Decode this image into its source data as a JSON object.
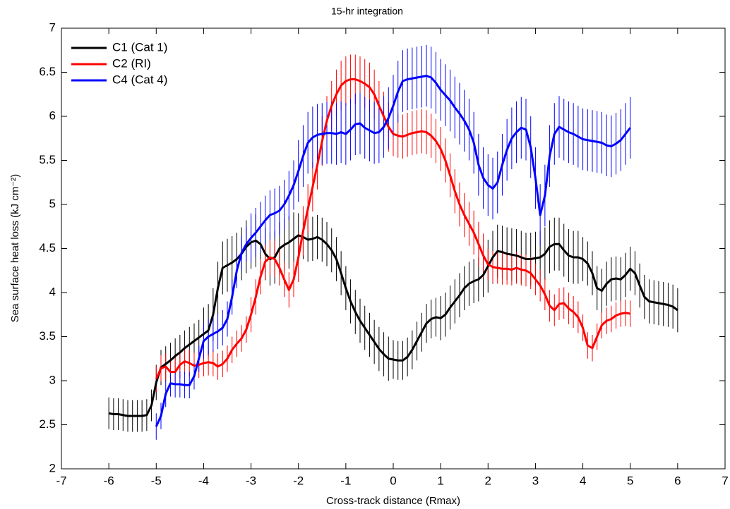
{
  "chart_data": {
    "type": "line",
    "title": "15-hr integration",
    "x_label": "Cross-track distance (Rmax)",
    "y_label": "Sea surface heat loss (kJ cm⁻²)",
    "xlim": [
      -7,
      7
    ],
    "xticks": [
      -7,
      -6,
      -5,
      -4,
      -3,
      -2,
      -1,
      0,
      1,
      2,
      3,
      4,
      5,
      6,
      7
    ],
    "ylim": [
      2,
      7
    ],
    "yticks": [
      2,
      2.5,
      3,
      3.5,
      4,
      4.5,
      5,
      5.5,
      6,
      6.5,
      7
    ],
    "grid": false,
    "legend": "upper left",
    "series": [
      {
        "name": "C1 (Cat 1)",
        "color": "#000000",
        "x": [
          -6,
          -5.9,
          -5.8,
          -5.7,
          -5.6,
          -5.5,
          -5.4,
          -5.3,
          -5.2,
          -5.1,
          -5,
          -4.9,
          -4.8,
          -4.7,
          -4.6,
          -4.5,
          -4.4,
          -4.3,
          -4.2,
          -4.1,
          -4,
          -3.9,
          -3.8,
          -3.7,
          -3.6,
          -3.5,
          -3.4,
          -3.3,
          -3.2,
          -3.1,
          -3,
          -2.9,
          -2.8,
          -2.7,
          -2.6,
          -2.5,
          -2.4,
          -2.3,
          -2.2,
          -2.1,
          -2,
          -1.9,
          -1.8,
          -1.7,
          -1.6,
          -1.5,
          -1.4,
          -1.3,
          -1.2,
          -1.1,
          -1,
          -0.9,
          -0.8,
          -0.7,
          -0.6,
          -0.5,
          -0.4,
          -0.3,
          -0.2,
          -0.1,
          0,
          0.1,
          0.2,
          0.3,
          0.4,
          0.5,
          0.6,
          0.7,
          0.8,
          0.9,
          1,
          1.1,
          1.2,
          1.3,
          1.4,
          1.5,
          1.6,
          1.7,
          1.8,
          1.9,
          2,
          2.1,
          2.2,
          2.3,
          2.4,
          2.5,
          2.6,
          2.7,
          2.8,
          2.9,
          3,
          3.1,
          3.2,
          3.3,
          3.4,
          3.5,
          3.6,
          3.7,
          3.8,
          3.9,
          4,
          4.1,
          4.2,
          4.3,
          4.4,
          4.5,
          4.6,
          4.7,
          4.8,
          4.9,
          5,
          5.1,
          5.2,
          5.3,
          5.4,
          5.5,
          5.6,
          5.7,
          5.8,
          5.9,
          6
        ],
        "values": [
          2.63,
          2.62,
          2.62,
          2.61,
          2.6,
          2.6,
          2.6,
          2.6,
          2.61,
          2.72,
          2.98,
          3.15,
          3.19,
          3.23,
          3.28,
          3.32,
          3.37,
          3.41,
          3.45,
          3.49,
          3.53,
          3.57,
          3.75,
          4.05,
          4.28,
          4.31,
          4.34,
          4.38,
          4.44,
          4.52,
          4.57,
          4.59,
          4.55,
          4.44,
          4.38,
          4.4,
          4.5,
          4.54,
          4.57,
          4.61,
          4.65,
          4.63,
          4.6,
          4.61,
          4.63,
          4.6,
          4.55,
          4.48,
          4.38,
          4.22,
          4.05,
          3.9,
          3.78,
          3.68,
          3.6,
          3.52,
          3.44,
          3.36,
          3.3,
          3.25,
          3.24,
          3.23,
          3.23,
          3.27,
          3.35,
          3.45,
          3.55,
          3.65,
          3.7,
          3.72,
          3.71,
          3.75,
          3.83,
          3.9,
          3.97,
          4.05,
          4.1,
          4.13,
          4.15,
          4.2,
          4.3,
          4.4,
          4.47,
          4.46,
          4.44,
          4.43,
          4.42,
          4.4,
          4.38,
          4.38,
          4.39,
          4.4,
          4.44,
          4.52,
          4.55,
          4.55,
          4.48,
          4.42,
          4.4,
          4.4,
          4.38,
          4.33,
          4.22,
          4.05,
          4.02,
          4.1,
          4.15,
          4.16,
          4.15,
          4.2,
          4.27,
          4.22,
          4.08,
          3.95,
          3.9,
          3.89,
          3.88,
          3.87,
          3.86,
          3.84,
          3.8
        ],
        "errors": [
          0.18,
          0.18,
          0.18,
          0.18,
          0.18,
          0.18,
          0.18,
          0.18,
          0.18,
          0.18,
          0.2,
          0.2,
          0.2,
          0.2,
          0.2,
          0.2,
          0.2,
          0.2,
          0.2,
          0.2,
          0.3,
          0.3,
          0.3,
          0.3,
          0.3,
          0.3,
          0.3,
          0.3,
          0.3,
          0.3,
          0.3,
          0.3,
          0.3,
          0.3,
          0.3,
          0.3,
          0.3,
          0.3,
          0.3,
          0.3,
          0.25,
          0.25,
          0.25,
          0.25,
          0.25,
          0.25,
          0.25,
          0.25,
          0.25,
          0.25,
          0.25,
          0.25,
          0.25,
          0.25,
          0.25,
          0.25,
          0.25,
          0.25,
          0.25,
          0.25,
          0.22,
          0.22,
          0.22,
          0.22,
          0.22,
          0.22,
          0.22,
          0.22,
          0.22,
          0.22,
          0.25,
          0.25,
          0.25,
          0.25,
          0.25,
          0.25,
          0.25,
          0.25,
          0.25,
          0.25,
          0.3,
          0.3,
          0.3,
          0.3,
          0.3,
          0.3,
          0.3,
          0.3,
          0.3,
          0.3,
          0.3,
          0.3,
          0.3,
          0.3,
          0.3,
          0.3,
          0.3,
          0.3,
          0.3,
          0.3,
          0.25,
          0.25,
          0.25,
          0.25,
          0.25,
          0.25,
          0.25,
          0.25,
          0.25,
          0.25,
          0.25,
          0.25,
          0.25,
          0.25,
          0.25,
          0.25,
          0.25,
          0.25,
          0.25,
          0.25,
          0.25
        ]
      },
      {
        "name": "C2 (RI)",
        "color": "#ff0000",
        "x": [
          -5,
          -4.9,
          -4.8,
          -4.7,
          -4.6,
          -4.5,
          -4.4,
          -4.3,
          -4.2,
          -4.1,
          -4,
          -3.9,
          -3.8,
          -3.7,
          -3.6,
          -3.5,
          -3.4,
          -3.3,
          -3.2,
          -3.1,
          -3,
          -2.9,
          -2.8,
          -2.7,
          -2.6,
          -2.5,
          -2.4,
          -2.3,
          -2.2,
          -2.1,
          -2,
          -1.9,
          -1.8,
          -1.7,
          -1.6,
          -1.5,
          -1.4,
          -1.3,
          -1.2,
          -1.1,
          -1,
          -0.9,
          -0.8,
          -0.7,
          -0.6,
          -0.5,
          -0.4,
          -0.3,
          -0.2,
          -0.1,
          0,
          0.1,
          0.2,
          0.3,
          0.4,
          0.5,
          0.6,
          0.7,
          0.8,
          0.9,
          1,
          1.1,
          1.2,
          1.3,
          1.4,
          1.5,
          1.6,
          1.7,
          1.8,
          1.9,
          2,
          2.1,
          2.2,
          2.3,
          2.4,
          2.5,
          2.6,
          2.7,
          2.8,
          2.9,
          3,
          3.1,
          3.2,
          3.3,
          3.4,
          3.5,
          3.6,
          3.7,
          3.8,
          3.9,
          4,
          4.1,
          4.2,
          4.3,
          4.4,
          4.5,
          4.6,
          4.7,
          4.8,
          4.9,
          5
        ],
        "values": [
          3.02,
          3.14,
          3.16,
          3.1,
          3.1,
          3.18,
          3.22,
          3.2,
          3.17,
          3.18,
          3.2,
          3.21,
          3.2,
          3.16,
          3.19,
          3.25,
          3.35,
          3.42,
          3.48,
          3.58,
          3.75,
          3.95,
          4.18,
          4.35,
          4.4,
          4.38,
          4.28,
          4.15,
          4.03,
          4.15,
          4.4,
          4.7,
          4.95,
          5.2,
          5.45,
          5.72,
          5.95,
          6.12,
          6.25,
          6.35,
          6.4,
          6.42,
          6.42,
          6.4,
          6.37,
          6.33,
          6.25,
          6.12,
          6,
          5.88,
          5.8,
          5.78,
          5.77,
          5.79,
          5.81,
          5.82,
          5.83,
          5.82,
          5.78,
          5.72,
          5.63,
          5.5,
          5.33,
          5.15,
          5,
          4.88,
          4.78,
          4.68,
          4.55,
          4.42,
          4.32,
          4.29,
          4.28,
          4.27,
          4.27,
          4.26,
          4.28,
          4.26,
          4.25,
          4.22,
          4.15,
          4.08,
          3.98,
          3.85,
          3.8,
          3.87,
          3.88,
          3.82,
          3.78,
          3.72,
          3.6,
          3.4,
          3.37,
          3.5,
          3.63,
          3.68,
          3.7,
          3.74,
          3.76,
          3.77,
          3.76
        ],
        "errors": [
          0.15,
          0.15,
          0.15,
          0.15,
          0.15,
          0.15,
          0.15,
          0.15,
          0.15,
          0.15,
          0.15,
          0.15,
          0.15,
          0.15,
          0.15,
          0.15,
          0.15,
          0.15,
          0.15,
          0.15,
          0.2,
          0.2,
          0.2,
          0.2,
          0.2,
          0.2,
          0.2,
          0.2,
          0.2,
          0.2,
          0.28,
          0.28,
          0.28,
          0.28,
          0.28,
          0.28,
          0.28,
          0.28,
          0.28,
          0.28,
          0.28,
          0.28,
          0.28,
          0.28,
          0.28,
          0.28,
          0.28,
          0.28,
          0.28,
          0.28,
          0.25,
          0.25,
          0.25,
          0.25,
          0.25,
          0.25,
          0.25,
          0.25,
          0.25,
          0.25,
          0.25,
          0.25,
          0.25,
          0.25,
          0.25,
          0.25,
          0.25,
          0.25,
          0.25,
          0.25,
          0.18,
          0.18,
          0.18,
          0.18,
          0.18,
          0.18,
          0.18,
          0.18,
          0.18,
          0.18,
          0.18,
          0.18,
          0.18,
          0.18,
          0.18,
          0.18,
          0.18,
          0.18,
          0.18,
          0.18,
          0.15,
          0.15,
          0.15,
          0.15,
          0.15,
          0.15,
          0.15,
          0.15,
          0.15,
          0.15,
          0.15
        ]
      },
      {
        "name": "C4 (Cat 4)",
        "color": "#0000ff",
        "x": [
          -5,
          -4.9,
          -4.8,
          -4.7,
          -4.6,
          -4.5,
          -4.4,
          -4.3,
          -4.2,
          -4.1,
          -4,
          -3.9,
          -3.8,
          -3.7,
          -3.6,
          -3.5,
          -3.4,
          -3.3,
          -3.2,
          -3.1,
          -3,
          -2.9,
          -2.8,
          -2.7,
          -2.6,
          -2.5,
          -2.4,
          -2.3,
          -2.2,
          -2.1,
          -2,
          -1.9,
          -1.8,
          -1.7,
          -1.6,
          -1.5,
          -1.4,
          -1.3,
          -1.2,
          -1.1,
          -1,
          -0.9,
          -0.8,
          -0.7,
          -0.6,
          -0.5,
          -0.4,
          -0.3,
          -0.2,
          -0.1,
          0,
          0.1,
          0.2,
          0.3,
          0.4,
          0.5,
          0.6,
          0.7,
          0.8,
          0.9,
          1,
          1.1,
          1.2,
          1.3,
          1.4,
          1.5,
          1.6,
          1.7,
          1.8,
          1.9,
          2,
          2.1,
          2.2,
          2.3,
          2.4,
          2.5,
          2.6,
          2.7,
          2.8,
          2.9,
          3,
          3.1,
          3.2,
          3.3,
          3.4,
          3.5,
          3.6,
          3.7,
          3.8,
          3.9,
          4,
          4.1,
          4.2,
          4.3,
          4.4,
          4.5,
          4.6,
          4.7,
          4.8,
          4.9,
          5
        ],
        "values": [
          2.48,
          2.6,
          2.85,
          2.97,
          2.96,
          2.96,
          2.95,
          2.95,
          3.05,
          3.25,
          3.45,
          3.5,
          3.53,
          3.56,
          3.6,
          3.7,
          3.95,
          4.25,
          4.45,
          4.55,
          4.62,
          4.68,
          4.75,
          4.82,
          4.88,
          4.9,
          4.93,
          5,
          5.1,
          5.22,
          5.38,
          5.55,
          5.7,
          5.76,
          5.79,
          5.8,
          5.81,
          5.81,
          5.8,
          5.82,
          5.8,
          5.85,
          5.91,
          5.92,
          5.87,
          5.84,
          5.81,
          5.82,
          5.88,
          5.98,
          6.12,
          6.28,
          6.4,
          6.42,
          6.43,
          6.44,
          6.45,
          6.46,
          6.44,
          6.38,
          6.3,
          6.24,
          6.18,
          6.1,
          6.03,
          5.95,
          5.85,
          5.7,
          5.45,
          5.3,
          5.22,
          5.18,
          5.25,
          5.45,
          5.62,
          5.75,
          5.82,
          5.87,
          5.85,
          5.65,
          5.3,
          4.88,
          5.1,
          5.55,
          5.8,
          5.88,
          5.85,
          5.82,
          5.8,
          5.77,
          5.74,
          5.73,
          5.72,
          5.71,
          5.7,
          5.67,
          5.66,
          5.69,
          5.73,
          5.8,
          5.87
        ],
        "errors": [
          0.15,
          0.15,
          0.15,
          0.15,
          0.15,
          0.15,
          0.15,
          0.15,
          0.15,
          0.15,
          0.2,
          0.2,
          0.2,
          0.2,
          0.2,
          0.2,
          0.2,
          0.2,
          0.2,
          0.2,
          0.28,
          0.28,
          0.28,
          0.28,
          0.28,
          0.28,
          0.28,
          0.28,
          0.28,
          0.28,
          0.35,
          0.35,
          0.35,
          0.35,
          0.35,
          0.35,
          0.35,
          0.35,
          0.35,
          0.35,
          0.35,
          0.35,
          0.35,
          0.35,
          0.35,
          0.35,
          0.35,
          0.35,
          0.35,
          0.35,
          0.35,
          0.35,
          0.35,
          0.35,
          0.35,
          0.35,
          0.35,
          0.35,
          0.35,
          0.35,
          0.35,
          0.35,
          0.35,
          0.35,
          0.35,
          0.35,
          0.35,
          0.35,
          0.35,
          0.35,
          0.35,
          0.35,
          0.35,
          0.35,
          0.35,
          0.35,
          0.35,
          0.35,
          0.35,
          0.35,
          0.35,
          0.35,
          0.35,
          0.35,
          0.35,
          0.35,
          0.35,
          0.35,
          0.35,
          0.35,
          0.35,
          0.35,
          0.35,
          0.35,
          0.35,
          0.35,
          0.35,
          0.35,
          0.35,
          0.35,
          0.35
        ]
      }
    ]
  }
}
